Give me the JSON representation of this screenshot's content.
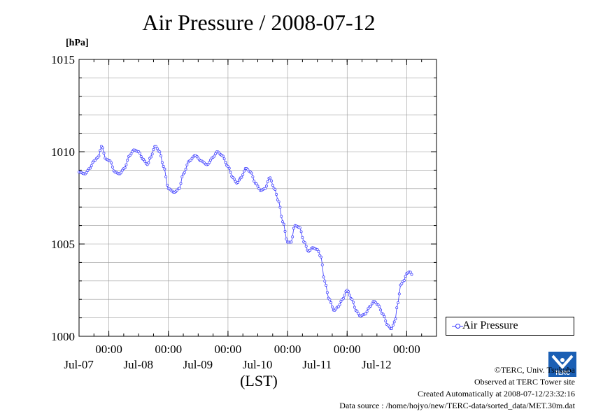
{
  "header": {
    "title": "Air Pressure / 2008-07-12",
    "unit": "[hPa]"
  },
  "axis": {
    "xlabel": "(LST)"
  },
  "legend": {
    "label": "Air Pressure"
  },
  "footer": {
    "copyright": "©TERC, Univ. Tsukuba",
    "observed": "Observed at TERC Tower site",
    "created": "Created Automatically at 2008-07-12/23:32:16",
    "source": "Data source : /home/hojyo/new/TERC-data/sorted_data/MET.30m.dat"
  },
  "logo": {
    "text": "TERC",
    "icon": "terc-logo-icon"
  },
  "colors": {
    "series": "#3333ff",
    "grid": "#999999",
    "axis": "#000000"
  },
  "chart_data": {
    "type": "line",
    "title": "Air Pressure / 2008-07-12",
    "ylabel": "[hPa]",
    "xlabel": "(LST)",
    "ylim": [
      1000,
      1015
    ],
    "yticks": [
      1000,
      1005,
      1010,
      1015
    ],
    "y_minor_step": 1,
    "x_unit": "days from 2008-07-06 12:00",
    "xlim": [
      0,
      6
    ],
    "x_ticks": [
      {
        "x": 0.5,
        "time": "00:00",
        "date": "Jul-07"
      },
      {
        "x": 1.5,
        "time": "00:00",
        "date": "Jul-08"
      },
      {
        "x": 2.5,
        "time": "00:00",
        "date": "Jul-09"
      },
      {
        "x": 3.5,
        "time": "00:00",
        "date": "Jul-10"
      },
      {
        "x": 4.5,
        "time": "00:00",
        "date": "Jul-11"
      },
      {
        "x": 5.5,
        "time": "00:00",
        "date": "Jul-12"
      }
    ],
    "x_minor_step": 0.25,
    "grid": true,
    "legend_position": "right",
    "series": [
      {
        "name": "Air Pressure",
        "interval_days": 0.020833,
        "keypoints": [
          [
            0.0,
            1008.9
          ],
          [
            0.1,
            1008.8
          ],
          [
            0.18,
            1009.1
          ],
          [
            0.25,
            1009.5
          ],
          [
            0.32,
            1009.7
          ],
          [
            0.38,
            1010.3
          ],
          [
            0.45,
            1009.6
          ],
          [
            0.52,
            1009.5
          ],
          [
            0.6,
            1008.9
          ],
          [
            0.68,
            1008.8
          ],
          [
            0.76,
            1009.1
          ],
          [
            0.85,
            1009.8
          ],
          [
            0.92,
            1010.1
          ],
          [
            1.0,
            1010.0
          ],
          [
            1.07,
            1009.6
          ],
          [
            1.15,
            1009.3
          ],
          [
            1.2,
            1009.7
          ],
          [
            1.28,
            1010.3
          ],
          [
            1.35,
            1010.0
          ],
          [
            1.42,
            1009.2
          ],
          [
            1.5,
            1008.0
          ],
          [
            1.6,
            1007.8
          ],
          [
            1.68,
            1008.0
          ],
          [
            1.75,
            1008.8
          ],
          [
            1.85,
            1009.5
          ],
          [
            1.95,
            1009.8
          ],
          [
            2.05,
            1009.5
          ],
          [
            2.15,
            1009.3
          ],
          [
            2.25,
            1009.7
          ],
          [
            2.32,
            1010.0
          ],
          [
            2.4,
            1009.8
          ],
          [
            2.5,
            1009.2
          ],
          [
            2.58,
            1008.6
          ],
          [
            2.65,
            1008.3
          ],
          [
            2.72,
            1008.6
          ],
          [
            2.8,
            1009.1
          ],
          [
            2.88,
            1008.9
          ],
          [
            2.96,
            1008.3
          ],
          [
            3.05,
            1007.9
          ],
          [
            3.12,
            1008.0
          ],
          [
            3.2,
            1008.6
          ],
          [
            3.28,
            1008.0
          ],
          [
            3.35,
            1007.3
          ],
          [
            3.42,
            1006.2
          ],
          [
            3.5,
            1005.1
          ],
          [
            3.56,
            1005.1
          ],
          [
            3.62,
            1006.0
          ],
          [
            3.7,
            1005.9
          ],
          [
            3.78,
            1005.1
          ],
          [
            3.85,
            1004.6
          ],
          [
            3.92,
            1004.8
          ],
          [
            4.0,
            1004.7
          ],
          [
            4.06,
            1004.3
          ],
          [
            4.12,
            1003.0
          ],
          [
            4.2,
            1002.0
          ],
          [
            4.28,
            1001.4
          ],
          [
            4.35,
            1001.6
          ],
          [
            4.42,
            1002.0
          ],
          [
            4.5,
            1002.5
          ],
          [
            4.58,
            1002.0
          ],
          [
            4.65,
            1001.4
          ],
          [
            4.72,
            1001.1
          ],
          [
            4.8,
            1001.2
          ],
          [
            4.88,
            1001.6
          ],
          [
            4.95,
            1001.9
          ],
          [
            5.02,
            1001.7
          ],
          [
            5.1,
            1001.2
          ],
          [
            5.18,
            1000.6
          ],
          [
            5.24,
            1000.4
          ],
          [
            5.3,
            1000.8
          ],
          [
            5.35,
            1001.8
          ],
          [
            5.4,
            1002.8
          ],
          [
            5.45,
            1003.0
          ],
          [
            5.5,
            1003.4
          ],
          [
            5.55,
            1003.5
          ],
          [
            5.6,
            1003.3
          ]
        ]
      }
    ]
  }
}
